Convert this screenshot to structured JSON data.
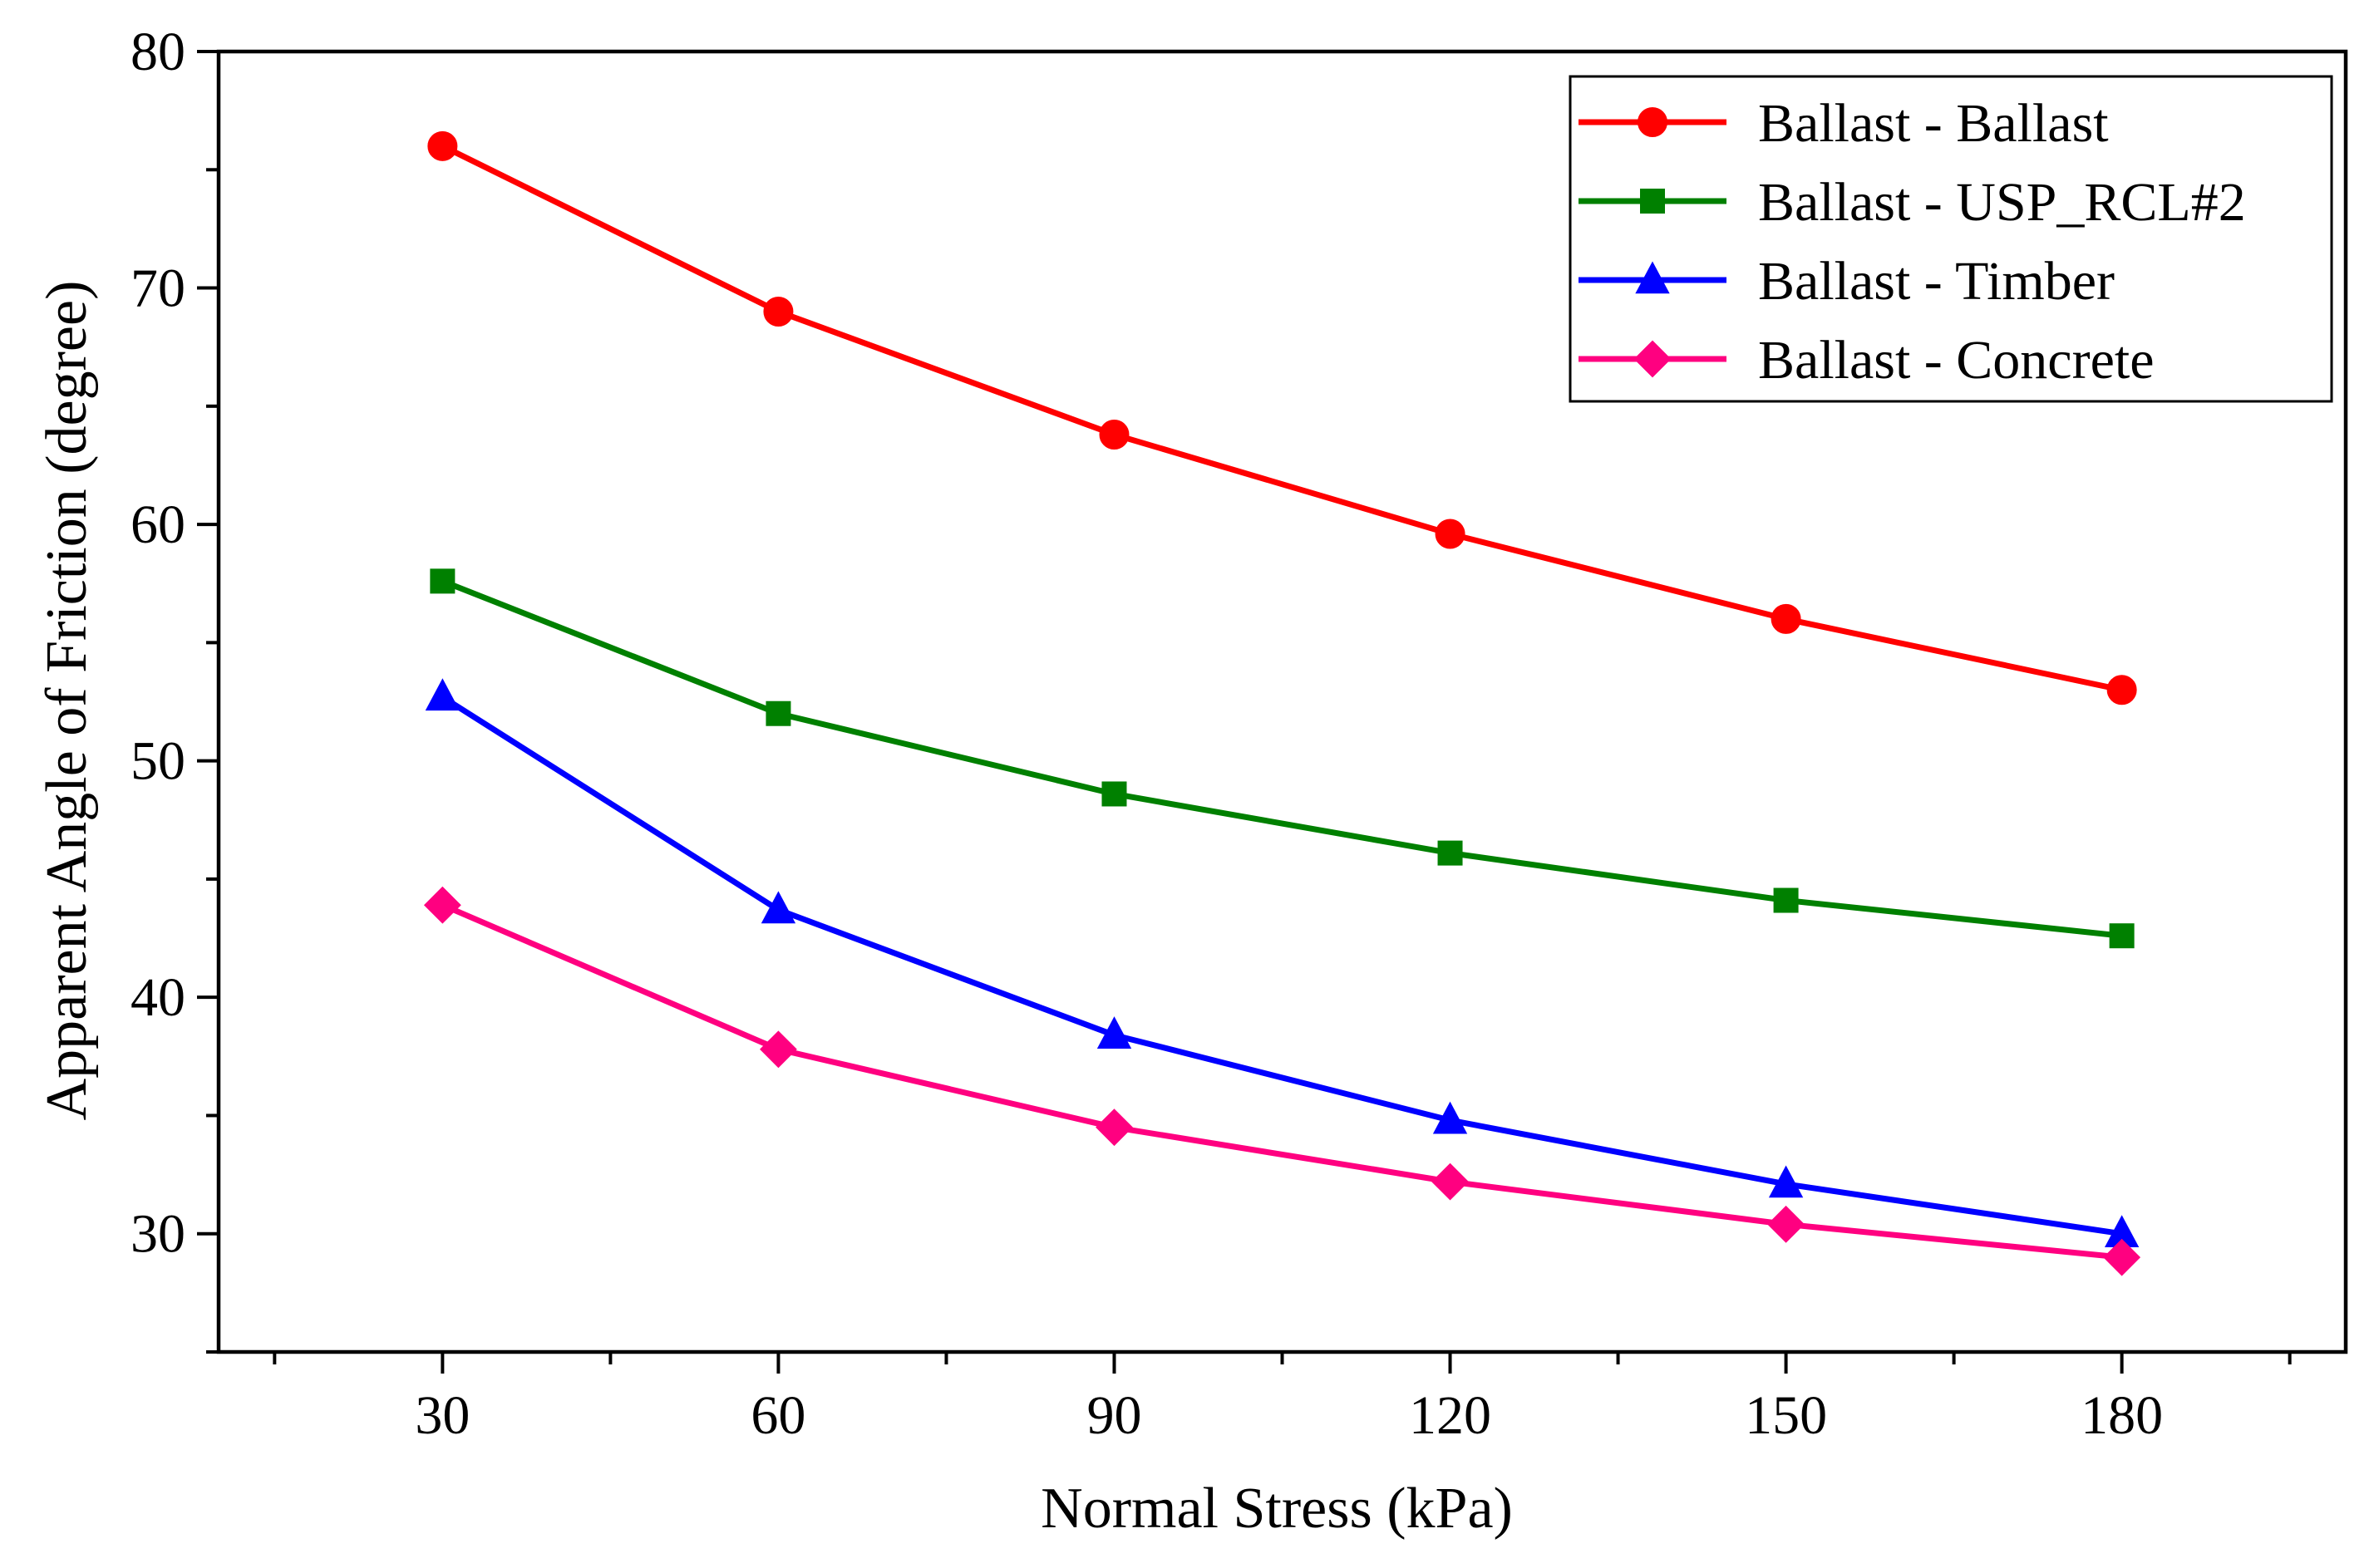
{
  "chart_data": {
    "type": "line",
    "title": "",
    "xlabel": "Normal Stress (kPa)",
    "ylabel": "Apparent Angle of Friction (degree)",
    "xlim": [
      10,
      200
    ],
    "ylim": [
      25,
      80
    ],
    "x_ticks": [
      30,
      60,
      90,
      120,
      150,
      180
    ],
    "y_ticks": [
      30,
      40,
      50,
      60,
      70,
      80
    ],
    "x_tick_labels": [
      "30",
      "60",
      "90",
      "120",
      "150",
      "180"
    ],
    "y_tick_labels": [
      "30",
      "40",
      "50",
      "60",
      "70",
      "80"
    ],
    "legend_position": "top-right",
    "x": [
      30,
      60,
      90,
      120,
      150,
      180
    ],
    "series": [
      {
        "name": "Ballast - Ballast",
        "color": "#ff0000",
        "marker": "circle",
        "values": [
          76.0,
          69.0,
          63.8,
          59.6,
          56.0,
          53.0
        ]
      },
      {
        "name": "Ballast - USP_RCL#2",
        "color": "#008000",
        "marker": "square",
        "values": [
          57.6,
          52.0,
          48.6,
          46.1,
          44.1,
          42.6
        ]
      },
      {
        "name": "Ballast - Timber",
        "color": "#0000ff",
        "marker": "triangle",
        "values": [
          52.7,
          43.7,
          38.4,
          34.8,
          32.1,
          30.0
        ]
      },
      {
        "name": "Ballast - Concrete",
        "color": "#ff0080",
        "marker": "diamond",
        "values": [
          43.9,
          37.8,
          34.5,
          32.2,
          30.4,
          29.0
        ]
      }
    ]
  }
}
